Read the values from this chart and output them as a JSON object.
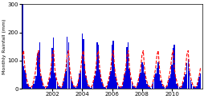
{
  "title": "",
  "ylabel": "Monthly Rainfall (mm)",
  "xlabel": "",
  "ylim": [
    0,
    300
  ],
  "yticks": [
    0,
    100,
    200,
    300
  ],
  "xticks_years": [
    2002,
    2004,
    2006,
    2008,
    2010
  ],
  "bar_color": "#0000dd",
  "line_color": "#ff0000",
  "figsize": [
    2.55,
    1.24
  ],
  "dpi": 100,
  "monthly_precip": [
    300,
    80,
    65,
    55,
    18,
    8,
    5,
    3,
    8,
    18,
    28,
    45,
    125,
    130,
    165,
    45,
    25,
    8,
    5,
    3,
    8,
    22,
    38,
    62,
    145,
    182,
    58,
    38,
    22,
    8,
    5,
    3,
    8,
    25,
    45,
    62,
    185,
    165,
    78,
    38,
    22,
    8,
    5,
    3,
    8,
    25,
    55,
    62,
    195,
    175,
    88,
    45,
    22,
    8,
    5,
    3,
    8,
    25,
    45,
    62,
    165,
    155,
    68,
    38,
    22,
    8,
    5,
    3,
    8,
    25,
    45,
    62,
    155,
    170,
    78,
    42,
    22,
    8,
    5,
    3,
    8,
    25,
    50,
    62,
    148,
    165,
    72,
    38,
    22,
    8,
    5,
    3,
    8,
    22,
    45,
    58,
    95,
    85,
    58,
    32,
    18,
    8,
    5,
    3,
    8,
    22,
    42,
    55,
    75,
    95,
    52,
    28,
    18,
    8,
    5,
    3,
    8,
    22,
    38,
    50,
    85,
    145,
    155,
    42,
    18,
    8,
    5,
    3,
    8,
    22,
    42,
    50,
    90,
    105,
    62,
    32,
    18,
    8,
    5,
    3,
    8,
    22,
    42,
    55
  ],
  "long_term_avg": [
    120,
    135,
    75,
    42,
    25,
    10,
    8,
    5,
    10,
    28,
    48,
    75,
    120,
    135,
    75,
    42,
    25,
    10,
    8,
    5,
    10,
    28,
    48,
    75,
    120,
    135,
    75,
    42,
    25,
    10,
    8,
    5,
    10,
    28,
    48,
    75,
    120,
    135,
    75,
    42,
    25,
    10,
    8,
    5,
    10,
    28,
    48,
    75,
    120,
    135,
    75,
    42,
    25,
    10,
    8,
    5,
    10,
    28,
    48,
    75,
    120,
    135,
    75,
    42,
    25,
    10,
    8,
    5,
    10,
    28,
    48,
    75,
    120,
    135,
    75,
    42,
    25,
    10,
    8,
    5,
    10,
    28,
    48,
    75,
    120,
    135,
    75,
    42,
    25,
    10,
    8,
    5,
    10,
    28,
    48,
    75,
    120,
    135,
    75,
    42,
    25,
    10,
    8,
    5,
    10,
    28,
    48,
    75,
    120,
    135,
    75,
    42,
    25,
    10,
    8,
    5,
    10,
    28,
    48,
    75,
    120,
    135,
    75,
    42,
    25,
    10,
    8,
    5,
    10,
    28,
    48,
    75,
    120,
    135,
    75,
    42,
    25,
    10,
    8,
    5,
    10,
    28,
    48,
    75
  ]
}
